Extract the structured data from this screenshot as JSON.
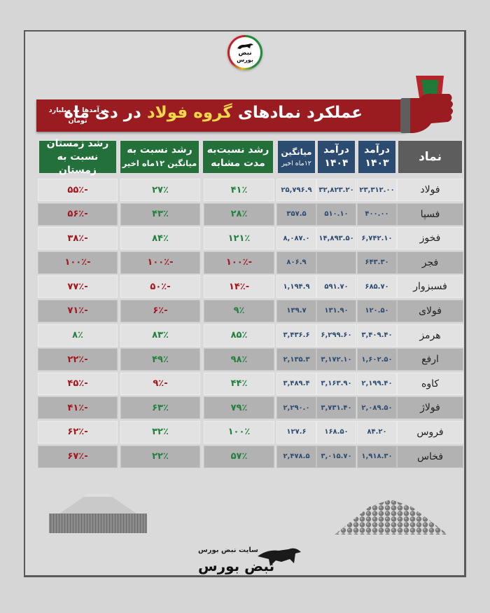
{
  "logo": {
    "line1": "نبض",
    "line2": "بورس"
  },
  "banner": {
    "title_part1": "عملکرد نمادهای",
    "title_highlight": "گروه فولاد",
    "title_part2": "در دی ماه",
    "note": "درآمدها به میلیارد تومان"
  },
  "table": {
    "headers": {
      "symbol": "نماد",
      "rev1403_l1": "درآمد",
      "rev1403_l2": "۱۴۰۳",
      "rev1404_l1": "درآمد",
      "rev1404_l2": "۱۴۰۴",
      "avg_l1": "میانگین",
      "avg_l2": "۱۲ماه اخیر",
      "g1_l1": "رشد نسبت‌به",
      "g1_l2": "مدت مشابه",
      "g2_l1": "رشد نسبت به",
      "g2_l2": "میانگین ۱۲ماه اخیر",
      "g3_l1": "رشد  زمستان",
      "g3_l2": "نسبت به زمستان"
    },
    "rows": [
      {
        "symbol": "فولاد",
        "rev1403": "۲۳,۳۱۲.۰۰",
        "rev1404": "۳۲,۸۲۳.۲۰",
        "avg": "۲۵,۷۹۶.۹",
        "g1": "۴۱٪",
        "g2": "۲۷٪",
        "g3": "-۵۵٪",
        "g1s": "pos",
        "g2s": "pos",
        "g3s": "neg"
      },
      {
        "symbol": "فسپا",
        "rev1403": "۴۰۰.۰۰",
        "rev1404": "۵۱۰.۱۰",
        "avg": "۳۵۷.۵",
        "g1": "۲۸٪",
        "g2": "۴۳٪",
        "g3": "-۵۶٪",
        "g1s": "pos",
        "g2s": "pos",
        "g3s": "neg"
      },
      {
        "symbol": "فخوز",
        "rev1403": "۶,۷۴۲.۱۰",
        "rev1404": "۱۴,۸۹۳.۵۰",
        "avg": "۸,۰۸۷.۰",
        "g1": "۱۲۱٪",
        "g2": "۸۴٪",
        "g3": "-۳۸٪",
        "g1s": "pos",
        "g2s": "pos",
        "g3s": "neg"
      },
      {
        "symbol": "فجر",
        "rev1403": "۶۴۳.۳۰",
        "rev1404": "",
        "avg": "۸۰۶.۹",
        "g1": "-۱۰۰٪",
        "g2": "-۱۰۰٪",
        "g3": "-۱۰۰٪",
        "g1s": "neg",
        "g2s": "neg",
        "g3s": "neg"
      },
      {
        "symbol": "فسبزوار",
        "rev1403": "۶۸۵.۷۰",
        "rev1404": "۵۹۱.۷۰",
        "avg": "۱,۱۹۴.۹",
        "g1": "-۱۴٪",
        "g2": "-۵۰٪",
        "g3": "-۷۷٪",
        "g1s": "neg",
        "g2s": "neg",
        "g3s": "neg"
      },
      {
        "symbol": "فولای",
        "rev1403": "۱۲۰.۵۰",
        "rev1404": "۱۳۱.۹۰",
        "avg": "۱۳۹.۷",
        "g1": "۹٪",
        "g2": "-۶٪",
        "g3": "-۷۱٪",
        "g1s": "pos",
        "g2s": "neg",
        "g3s": "neg"
      },
      {
        "symbol": "هرمز",
        "rev1403": "۳,۴۰۹.۴۰",
        "rev1404": "۶,۲۹۹.۶۰",
        "avg": "۳,۴۳۶.۶",
        "g1": "۸۵٪",
        "g2": "۸۳٪",
        "g3": "۸٪",
        "g1s": "pos",
        "g2s": "pos",
        "g3s": "pos"
      },
      {
        "symbol": "ارفع",
        "rev1403": "۱,۶۰۲.۵۰",
        "rev1404": "۳,۱۷۲.۱۰",
        "avg": "۲,۱۳۵.۳",
        "g1": "۹۸٪",
        "g2": "۴۹٪",
        "g3": "-۲۲٪",
        "g1s": "pos",
        "g2s": "pos",
        "g3s": "neg"
      },
      {
        "symbol": "کاوه",
        "rev1403": "۲,۱۹۹.۴۰",
        "rev1404": "۳,۱۶۳.۹۰",
        "avg": "۳,۴۸۹.۴",
        "g1": "۴۴٪",
        "g2": "-۹٪",
        "g3": "-۴۵٪",
        "g1s": "pos",
        "g2s": "neg",
        "g3s": "neg"
      },
      {
        "symbol": "فولاژ",
        "rev1403": "۲,۰۸۹.۵۰",
        "rev1404": "۳,۷۳۱.۴۰",
        "avg": "۲,۲۹۰.۰",
        "g1": "۷۹٪",
        "g2": "۶۳٪",
        "g3": "-۴۱٪",
        "g1s": "pos",
        "g2s": "pos",
        "g3s": "neg"
      },
      {
        "symbol": "فروس",
        "rev1403": "۸۴.۲۰",
        "rev1404": "۱۶۸.۵۰",
        "avg": "۱۲۷.۶",
        "g1": "۱۰۰٪",
        "g2": "۳۲٪",
        "g3": "-۶۲٪",
        "g1s": "pos",
        "g2s": "pos",
        "g3s": "neg"
      },
      {
        "symbol": "فخاس",
        "rev1403": "۱,۹۱۸.۳۰",
        "rev1404": "۳,۰۱۵.۷۰",
        "avg": "۲,۴۷۸.۵",
        "g1": "۵۷٪",
        "g2": "۲۲٪",
        "g3": "-۶۷٪",
        "g1s": "pos",
        "g2s": "pos",
        "g3s": "neg"
      }
    ]
  },
  "footer": {
    "subtitle": "سایت نبض بورس",
    "brand": "نبض بورس"
  },
  "colors": {
    "banner": "#9a1b20",
    "header_green": "#23703a",
    "header_blue": "#2b4b70",
    "header_gray": "#5d5d5d",
    "positive": "#23803f",
    "negative": "#a3171e",
    "highlight": "#f2d64b"
  }
}
